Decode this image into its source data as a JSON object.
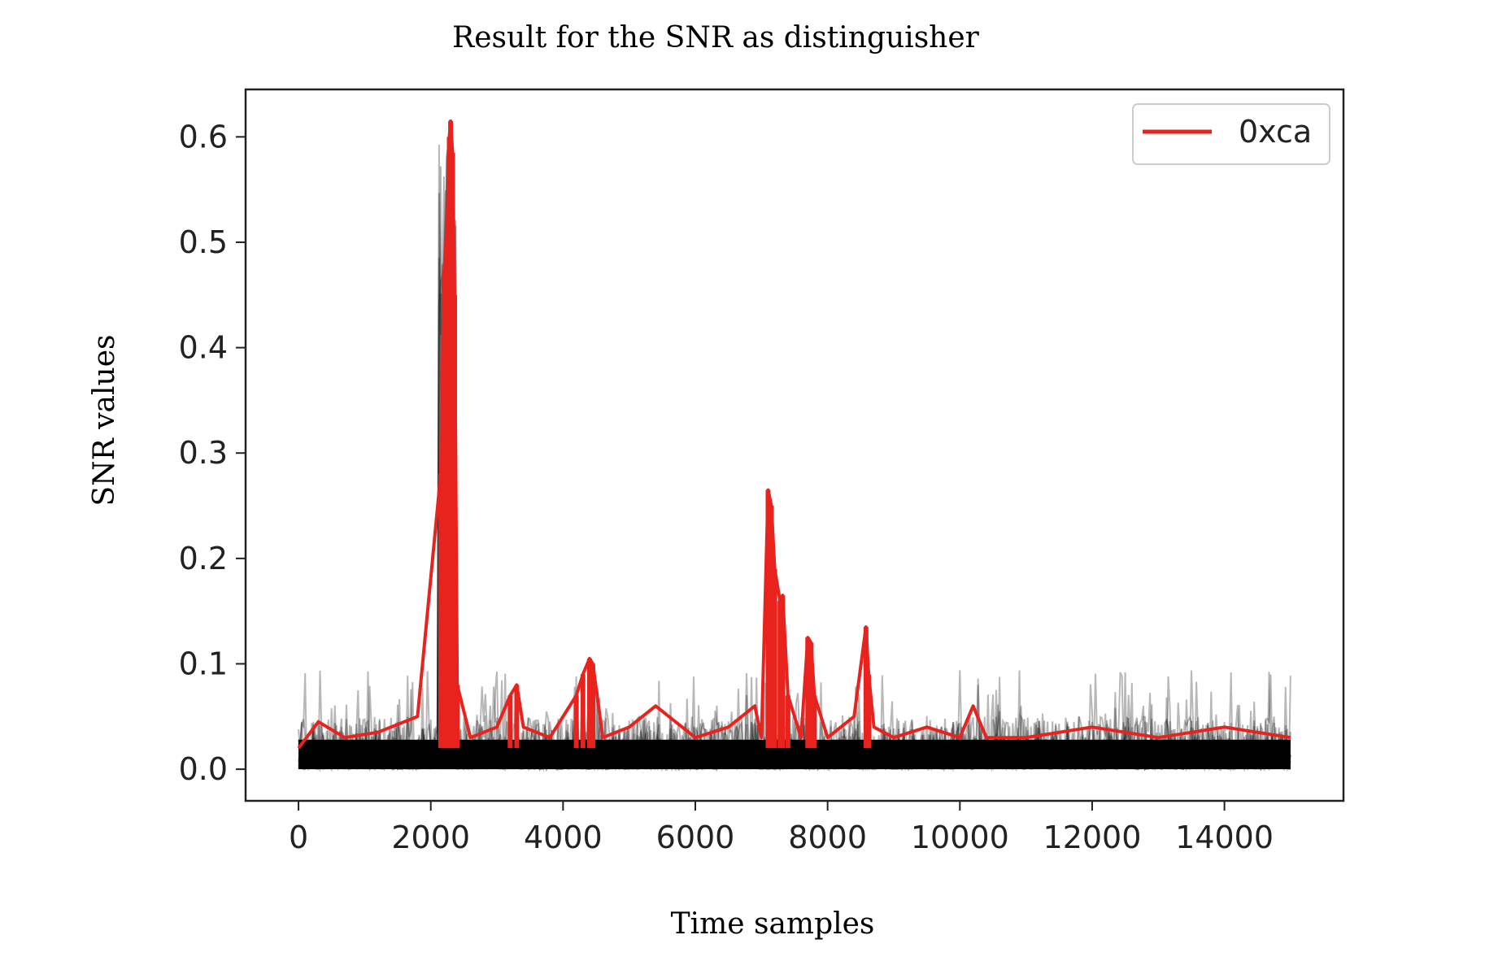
{
  "chart_data": {
    "type": "line",
    "title": "Result for the SNR as distinguisher",
    "xlabel": "Time samples",
    "ylabel": "SNR values",
    "xlim": [
      -800,
      15800
    ],
    "ylim": [
      -0.03,
      0.645
    ],
    "x_ticks": [
      0,
      2000,
      4000,
      6000,
      8000,
      10000,
      12000,
      14000
    ],
    "x_tick_labels": [
      "0",
      "2000",
      "4000",
      "6000",
      "8000",
      "10000",
      "12000",
      "14000"
    ],
    "y_ticks": [
      0.0,
      0.1,
      0.2,
      0.3,
      0.4,
      0.5,
      0.6
    ],
    "y_tick_labels": [
      "0.0",
      "0.1",
      "0.2",
      "0.3",
      "0.4",
      "0.5",
      "0.6"
    ],
    "grid": false,
    "legend": {
      "position": "top-right",
      "entries": [
        {
          "label": "0xca",
          "color": "#e8231e"
        }
      ]
    },
    "colors": {
      "highlight": "#e8231e",
      "others": "#000000"
    },
    "series": [
      {
        "name": "0xca",
        "color": "#e8231e",
        "x": [
          0,
          300,
          700,
          1200,
          1800,
          2150,
          2200,
          2250,
          2280,
          2300,
          2330,
          2360,
          2400,
          2600,
          3000,
          3200,
          3300,
          3400,
          3800,
          4200,
          4300,
          4400,
          4450,
          4600,
          5000,
          5400,
          6000,
          6500,
          6900,
          7000,
          7100,
          7150,
          7200,
          7280,
          7320,
          7400,
          7600,
          7700,
          7750,
          7800,
          8000,
          8400,
          8580,
          8620,
          8700,
          9000,
          9500,
          10000,
          10200,
          10400,
          11000,
          12000,
          13000,
          14000,
          15000
        ],
        "y": [
          0.02,
          0.045,
          0.03,
          0.035,
          0.05,
          0.28,
          0.47,
          0.52,
          0.6,
          0.615,
          0.585,
          0.45,
          0.08,
          0.03,
          0.04,
          0.07,
          0.08,
          0.04,
          0.03,
          0.07,
          0.09,
          0.105,
          0.1,
          0.03,
          0.04,
          0.06,
          0.03,
          0.04,
          0.06,
          0.03,
          0.265,
          0.25,
          0.19,
          0.16,
          0.165,
          0.07,
          0.03,
          0.125,
          0.12,
          0.07,
          0.03,
          0.05,
          0.135,
          0.09,
          0.04,
          0.03,
          0.04,
          0.03,
          0.06,
          0.03,
          0.03,
          0.04,
          0.03,
          0.04,
          0.03
        ]
      }
    ]
  }
}
